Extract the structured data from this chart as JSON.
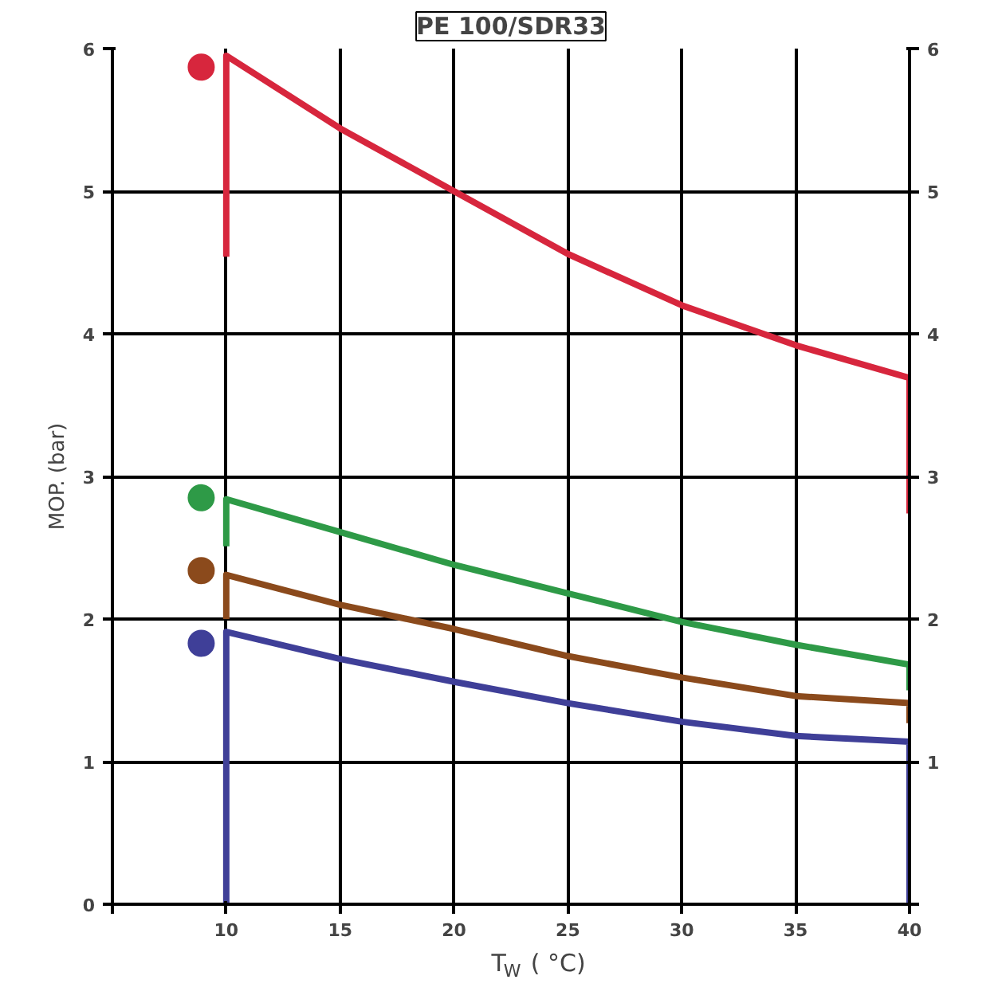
{
  "chart_data": {
    "type": "line",
    "title": "PE 100/SDR33",
    "xlabel": "T$_{W}$ ( °C)",
    "ylabel": "MOP. (bar)",
    "xlim": [
      5,
      40
    ],
    "xticks": [
      {
        "value": 5,
        "label": null
      },
      10,
      15,
      20,
      25,
      30,
      35,
      40
    ],
    "ylim": [
      0,
      6
    ],
    "yticks": [
      0,
      1,
      2,
      3,
      4,
      5,
      6
    ],
    "y2lim": [
      0,
      6
    ],
    "y2ticks": [
      {
        "value": 0,
        "label": null
      },
      1,
      2,
      3,
      4,
      5,
      6
    ],
    "grid": true,
    "marker": "none",
    "line_style": "solid",
    "series": [
      {
        "color": "#d7263d",
        "x": [
          10,
          10,
          15,
          20,
          25,
          30,
          35,
          40,
          40
        ],
        "values": [
          4.54,
          5.95,
          5.44,
          5.0,
          4.56,
          4.2,
          3.92,
          3.69,
          2.74
        ]
      },
      {
        "color": "#2e9a47",
        "x": [
          10,
          10,
          15,
          20,
          25,
          30,
          35,
          40,
          40
        ],
        "values": [
          2.51,
          2.84,
          2.61,
          2.38,
          2.18,
          1.98,
          1.82,
          1.68,
          1.5
        ]
      },
      {
        "color": "#8b4a1c",
        "x": [
          10,
          10,
          15,
          20,
          25,
          30,
          35,
          40,
          40
        ],
        "values": [
          2.0,
          2.31,
          2.1,
          1.93,
          1.74,
          1.59,
          1.46,
          1.41,
          1.27
        ]
      },
      {
        "color": "#3f3f98",
        "x": [
          10,
          10,
          15,
          20,
          25,
          30,
          35,
          40,
          40
        ],
        "values": [
          0,
          1.91,
          1.72,
          1.56,
          1.41,
          1.28,
          1.18,
          1.14,
          0
        ]
      },
      {
        "type": "scatter",
        "marker": "circle",
        "x": [
          8.9,
          8.9,
          8.9,
          8.9
        ],
        "values": [
          5.87,
          2.85,
          2.34,
          1.83
        ],
        "colors": [
          "#d7263d",
          "#2e9a47",
          "#8b4a1c",
          "#3f3f98"
        ]
      }
    ]
  }
}
